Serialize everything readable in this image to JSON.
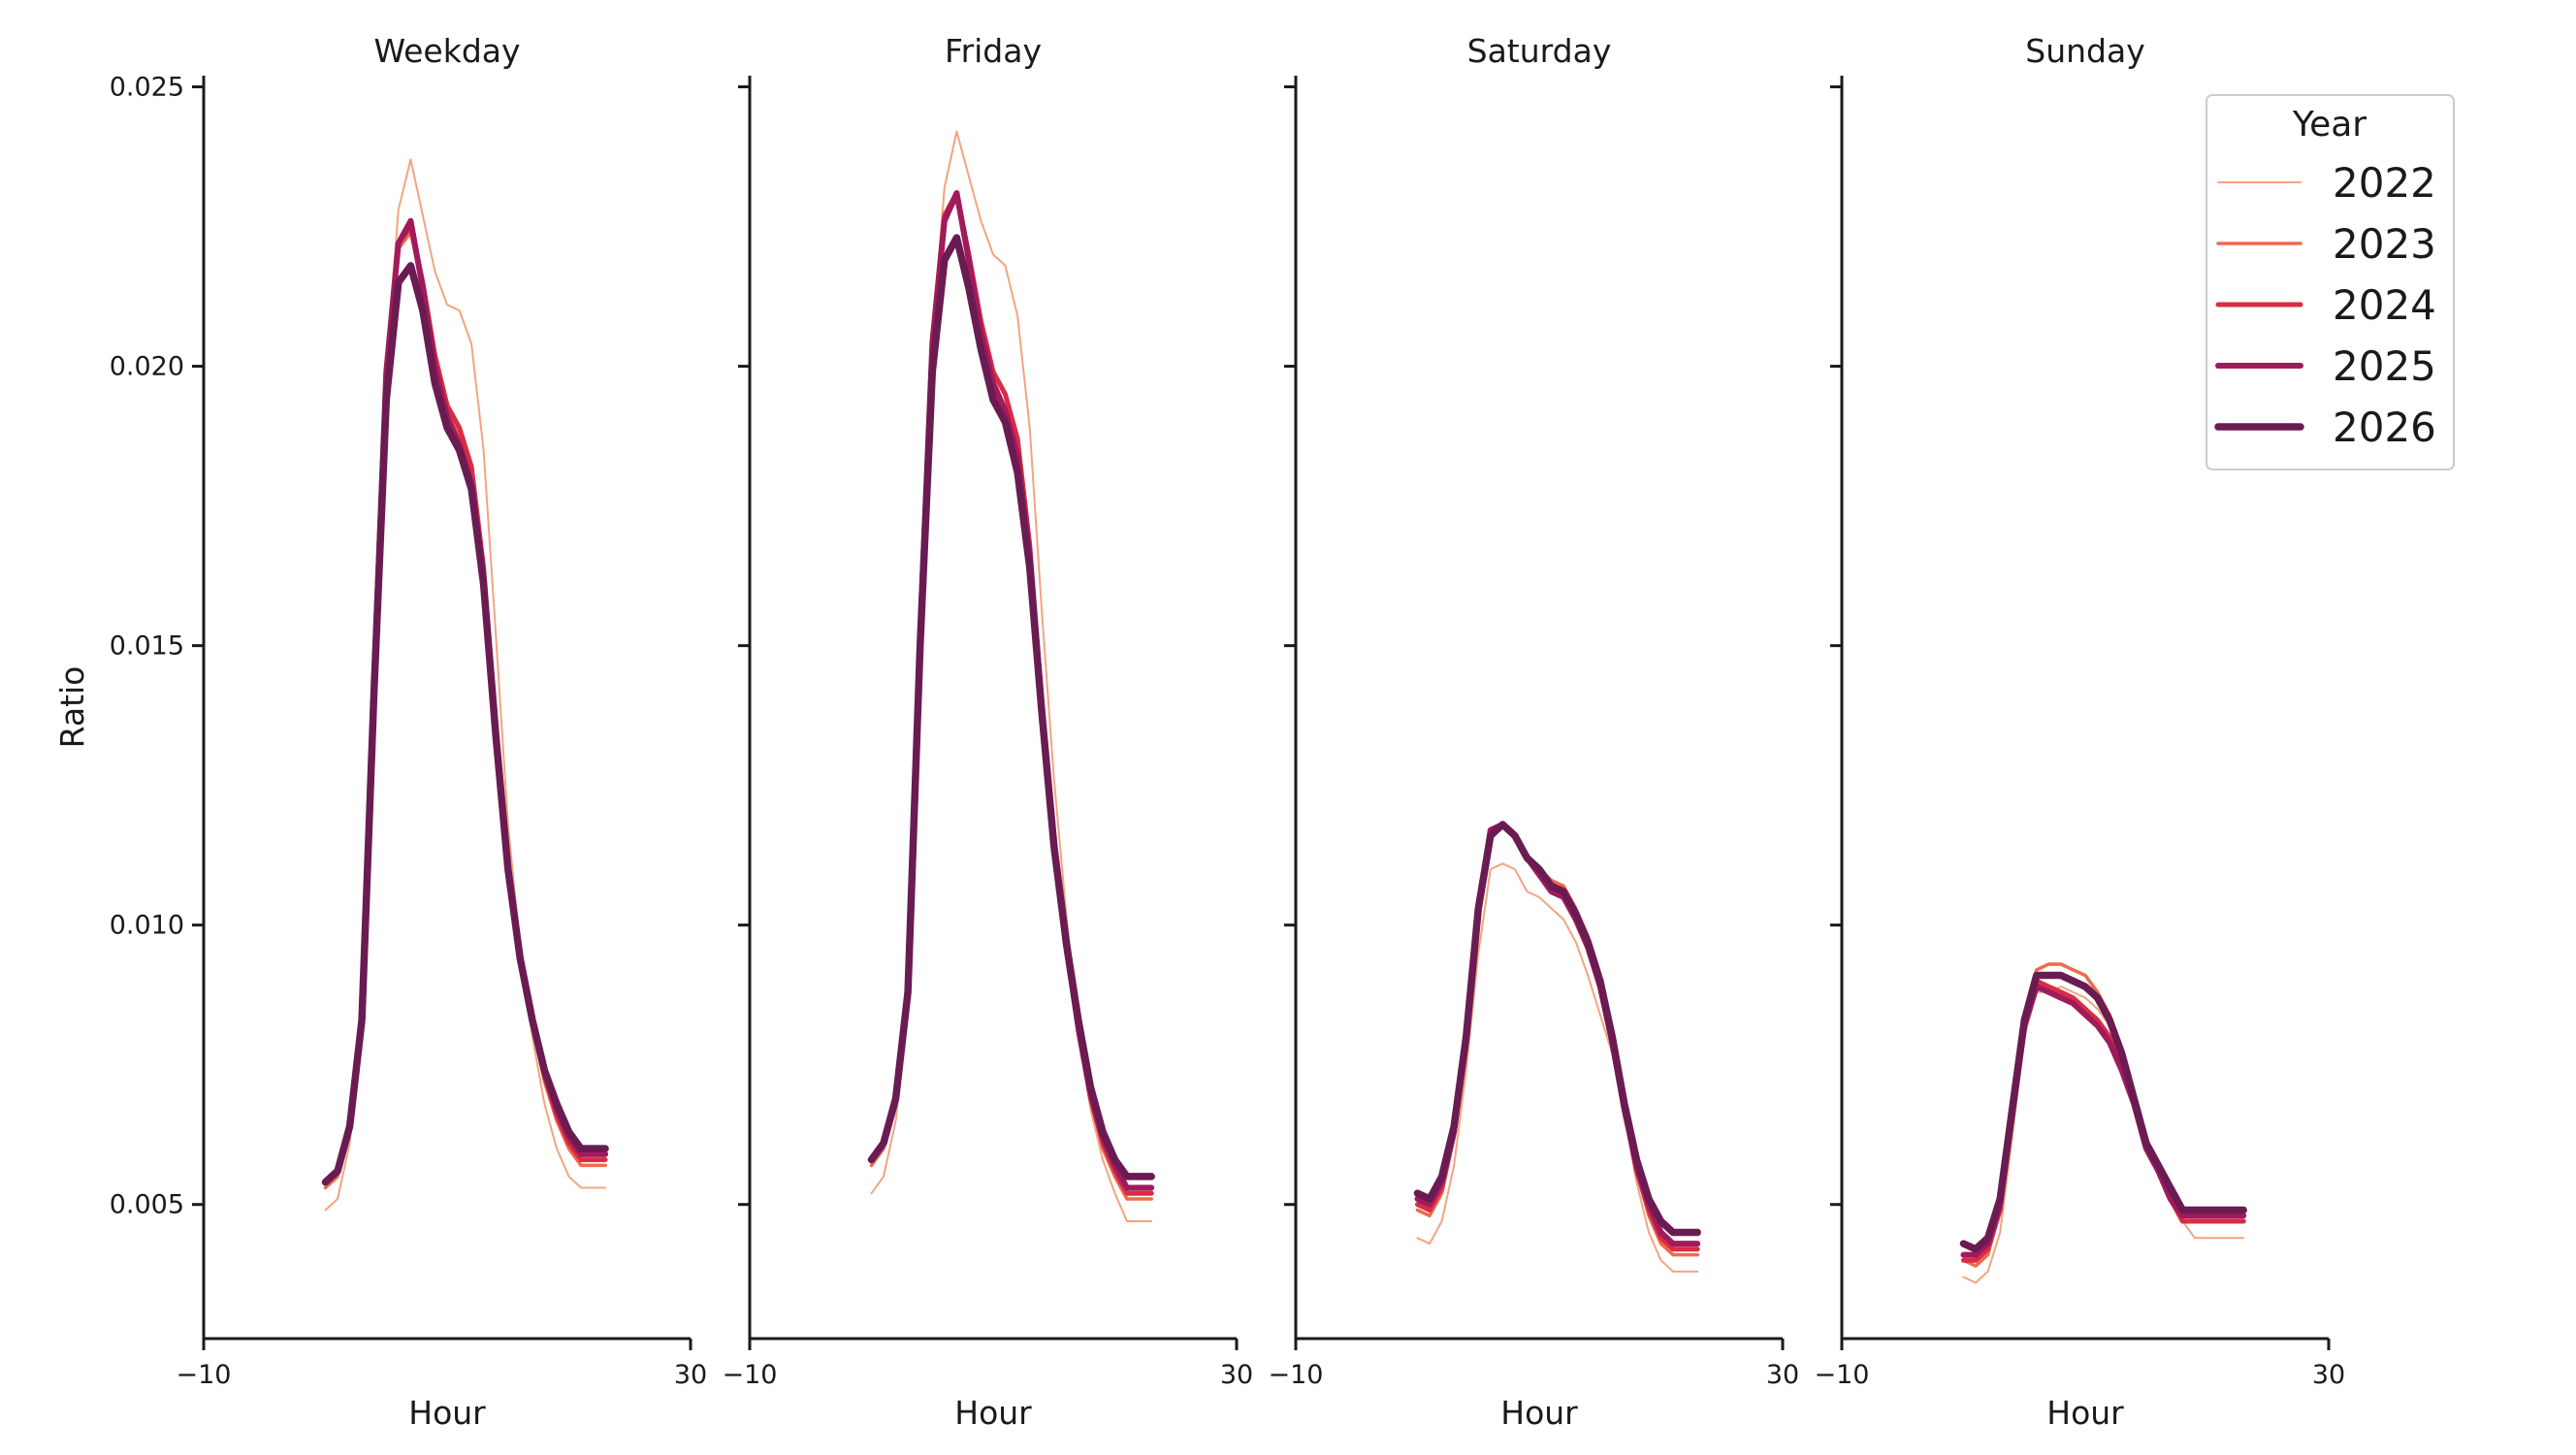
{
  "chart_data": {
    "type": "line",
    "facet_titles": [
      "Weekday",
      "Friday",
      "Saturday",
      "Sunday"
    ],
    "xlabel": "Hour",
    "ylabel": "Ratio",
    "xlim": [
      -10,
      30
    ],
    "ylim": [
      0.0026,
      0.0252
    ],
    "xticks": [
      -10,
      30
    ],
    "xtick_labels": [
      "−10",
      "30"
    ],
    "yticks": [
      0.005,
      0.01,
      0.015,
      0.02,
      0.025
    ],
    "ytick_labels": [
      "0.005",
      "0.010",
      "0.015",
      "0.020",
      "0.025"
    ],
    "grid": false,
    "legend": {
      "title": "Year",
      "placement": "top-right",
      "entries": [
        "2022",
        "2023",
        "2024",
        "2025",
        "2026"
      ]
    },
    "colors": {
      "2022": "#f3a481",
      "2023": "#ed6b4c",
      "2024": "#d92c44",
      "2025": "#a11a5b",
      "2026": "#6a1b52"
    },
    "x": [
      0,
      1,
      2,
      3,
      4,
      5,
      6,
      7,
      8,
      9,
      10,
      11,
      12,
      13,
      14,
      15,
      16,
      17,
      18,
      19,
      20,
      21,
      22,
      23
    ],
    "panels": [
      {
        "title": "Weekday",
        "series": [
          {
            "name": "2022",
            "values": [
              0.0049,
              0.0051,
              0.0061,
              0.0082,
              0.0142,
              0.02,
              0.0228,
              0.0237,
              0.0227,
              0.0217,
              0.0211,
              0.021,
              0.0204,
              0.0185,
              0.0152,
              0.0118,
              0.0096,
              0.008,
              0.0068,
              0.006,
              0.0055,
              0.0053,
              0.0053,
              0.0053
            ]
          },
          {
            "name": "2023",
            "values": [
              0.0053,
              0.0055,
              0.0063,
              0.0083,
              0.0144,
              0.0198,
              0.0221,
              0.0224,
              0.0214,
              0.0201,
              0.0192,
              0.0188,
              0.0181,
              0.0164,
              0.0135,
              0.011,
              0.0093,
              0.0082,
              0.0072,
              0.0065,
              0.006,
              0.0057,
              0.0057,
              0.0057
            ]
          },
          {
            "name": "2024",
            "values": [
              0.0054,
              0.0056,
              0.0064,
              0.0083,
              0.0144,
              0.0199,
              0.0222,
              0.0225,
              0.0215,
              0.0202,
              0.0193,
              0.0189,
              0.0182,
              0.0164,
              0.0135,
              0.011,
              0.0094,
              0.0083,
              0.0073,
              0.0066,
              0.0061,
              0.0058,
              0.0058,
              0.0058
            ]
          },
          {
            "name": "2025",
            "values": [
              0.0054,
              0.0056,
              0.0064,
              0.0083,
              0.0144,
              0.0199,
              0.0222,
              0.0226,
              0.0214,
              0.02,
              0.0191,
              0.0186,
              0.0179,
              0.0162,
              0.0134,
              0.011,
              0.0094,
              0.0083,
              0.0074,
              0.0067,
              0.0062,
              0.0059,
              0.0059,
              0.0059
            ]
          },
          {
            "name": "2026",
            "values": [
              0.0054,
              0.0056,
              0.0064,
              0.0083,
              0.0142,
              0.0194,
              0.0215,
              0.0218,
              0.021,
              0.0197,
              0.0189,
              0.0185,
              0.0178,
              0.0161,
              0.0134,
              0.011,
              0.0094,
              0.0083,
              0.0074,
              0.0068,
              0.0063,
              0.006,
              0.006,
              0.006
            ]
          }
        ]
      },
      {
        "title": "Friday",
        "series": [
          {
            "name": "2022",
            "values": [
              0.0052,
              0.0055,
              0.0065,
              0.0085,
              0.015,
              0.0205,
              0.0232,
              0.0242,
              0.0234,
              0.0226,
              0.022,
              0.0218,
              0.0209,
              0.0189,
              0.0156,
              0.0126,
              0.0102,
              0.0082,
              0.0067,
              0.0058,
              0.0052,
              0.0047,
              0.0047,
              0.0047
            ]
          },
          {
            "name": "2023",
            "values": [
              0.0057,
              0.006,
              0.0069,
              0.0088,
              0.0152,
              0.0204,
              0.0226,
              0.023,
              0.022,
              0.0208,
              0.0199,
              0.0195,
              0.0187,
              0.0168,
              0.014,
              0.0114,
              0.0096,
              0.0081,
              0.0069,
              0.006,
              0.0055,
              0.0051,
              0.0051,
              0.0051
            ]
          },
          {
            "name": "2024",
            "values": [
              0.0058,
              0.0061,
              0.0069,
              0.0088,
              0.0152,
              0.0205,
              0.0227,
              0.0231,
              0.022,
              0.0208,
              0.0199,
              0.0195,
              0.0187,
              0.0168,
              0.014,
              0.0114,
              0.0096,
              0.0081,
              0.0069,
              0.0061,
              0.0056,
              0.0052,
              0.0052,
              0.0052
            ]
          },
          {
            "name": "2025",
            "values": [
              0.0058,
              0.0061,
              0.0069,
              0.0088,
              0.0152,
              0.0204,
              0.0226,
              0.0231,
              0.0219,
              0.0206,
              0.0197,
              0.0192,
              0.0184,
              0.0166,
              0.0139,
              0.0114,
              0.0096,
              0.0082,
              0.007,
              0.0062,
              0.0057,
              0.0053,
              0.0053,
              0.0053
            ]
          },
          {
            "name": "2026",
            "values": [
              0.0058,
              0.0061,
              0.0069,
              0.0088,
              0.015,
              0.0199,
              0.0219,
              0.0223,
              0.0214,
              0.0203,
              0.0194,
              0.019,
              0.0181,
              0.0164,
              0.0138,
              0.0114,
              0.0097,
              0.0083,
              0.0071,
              0.0063,
              0.0058,
              0.0055,
              0.0055,
              0.0055
            ]
          }
        ]
      },
      {
        "title": "Saturday",
        "series": [
          {
            "name": "2022",
            "values": [
              0.0044,
              0.0043,
              0.0047,
              0.0057,
              0.0074,
              0.0095,
              0.011,
              0.0111,
              0.011,
              0.0106,
              0.0105,
              0.0103,
              0.0101,
              0.0097,
              0.0091,
              0.0084,
              0.0077,
              0.0066,
              0.0054,
              0.0045,
              0.004,
              0.0038,
              0.0038,
              0.0038
            ]
          },
          {
            "name": "2023",
            "values": [
              0.0049,
              0.0048,
              0.0052,
              0.0062,
              0.0079,
              0.0102,
              0.0116,
              0.0118,
              0.0116,
              0.0112,
              0.011,
              0.0108,
              0.0107,
              0.0103,
              0.0098,
              0.009,
              0.008,
              0.0067,
              0.0056,
              0.0048,
              0.0043,
              0.0041,
              0.0041,
              0.0041
            ]
          },
          {
            "name": "2024",
            "values": [
              0.005,
              0.0049,
              0.0053,
              0.0063,
              0.008,
              0.0103,
              0.0117,
              0.0118,
              0.0116,
              0.0112,
              0.0109,
              0.0107,
              0.0106,
              0.0102,
              0.0097,
              0.0089,
              0.0079,
              0.0067,
              0.0056,
              0.0049,
              0.0044,
              0.0042,
              0.0042,
              0.0042
            ]
          },
          {
            "name": "2025",
            "values": [
              0.0051,
              0.005,
              0.0054,
              0.0063,
              0.008,
              0.0103,
              0.0117,
              0.0118,
              0.0116,
              0.0112,
              0.0109,
              0.0106,
              0.0105,
              0.0101,
              0.0096,
              0.0089,
              0.0079,
              0.0067,
              0.0057,
              0.005,
              0.0045,
              0.0043,
              0.0043,
              0.0043
            ]
          },
          {
            "name": "2026",
            "values": [
              0.0052,
              0.0051,
              0.0055,
              0.0064,
              0.008,
              0.0103,
              0.0116,
              0.0118,
              0.0116,
              0.0112,
              0.011,
              0.0107,
              0.0106,
              0.0102,
              0.0097,
              0.009,
              0.008,
              0.0068,
              0.0058,
              0.0051,
              0.0047,
              0.0045,
              0.0045,
              0.0045
            ]
          }
        ]
      },
      {
        "title": "Sunday",
        "series": [
          {
            "name": "2022",
            "values": [
              0.0037,
              0.0036,
              0.0038,
              0.0045,
              0.0062,
              0.008,
              0.0088,
              0.0088,
              0.0089,
              0.0088,
              0.0087,
              0.0085,
              0.0082,
              0.0077,
              0.007,
              0.0062,
              0.0057,
              0.0051,
              0.0047,
              0.0044,
              0.0044,
              0.0044,
              0.0044,
              0.0044
            ]
          },
          {
            "name": "2023",
            "values": [
              0.004,
              0.0039,
              0.0041,
              0.0049,
              0.0066,
              0.0083,
              0.0092,
              0.0093,
              0.0093,
              0.0092,
              0.0091,
              0.0088,
              0.0084,
              0.0077,
              0.0069,
              0.0061,
              0.0056,
              0.0051,
              0.0047,
              0.0047,
              0.0047,
              0.0047,
              0.0047,
              0.0047
            ]
          },
          {
            "name": "2024",
            "values": [
              0.004,
              0.004,
              0.0042,
              0.0049,
              0.0066,
              0.0082,
              0.009,
              0.0089,
              0.0088,
              0.0087,
              0.0085,
              0.0083,
              0.008,
              0.0075,
              0.0068,
              0.006,
              0.0056,
              0.0051,
              0.0047,
              0.0047,
              0.0047,
              0.0047,
              0.0047,
              0.0047
            ]
          },
          {
            "name": "2025",
            "values": [
              0.0041,
              0.0041,
              0.0043,
              0.005,
              0.0066,
              0.0082,
              0.0089,
              0.0088,
              0.0087,
              0.0086,
              0.0084,
              0.0082,
              0.0079,
              0.0074,
              0.0068,
              0.006,
              0.0056,
              0.0051,
              0.0048,
              0.0048,
              0.0048,
              0.0048,
              0.0048,
              0.0048
            ]
          },
          {
            "name": "2026",
            "values": [
              0.0043,
              0.0042,
              0.0044,
              0.0051,
              0.0067,
              0.0083,
              0.0091,
              0.0091,
              0.0091,
              0.009,
              0.0089,
              0.0087,
              0.0083,
              0.0077,
              0.0069,
              0.0061,
              0.0057,
              0.0053,
              0.0049,
              0.0049,
              0.0049,
              0.0049,
              0.0049,
              0.0049
            ]
          }
        ]
      }
    ]
  }
}
